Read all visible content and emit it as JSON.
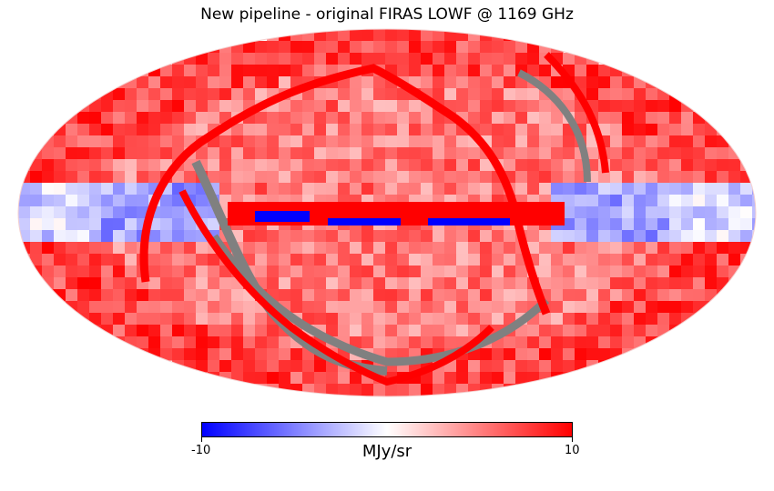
{
  "title": "New pipeline - original FIRAS LOWF @ 1169 GHz",
  "colorbar": {
    "min_label": "-10",
    "max_label": "10",
    "unit": "MJy/sr",
    "min": -10,
    "max": 10,
    "colors": [
      "#0000ff",
      "#ffffff",
      "#ff0000"
    ]
  },
  "map": {
    "projection": "mollweide",
    "colors": {
      "galactic_plane_excess": "#ff0000",
      "galactic_plane_deficit": "#0000ff",
      "masked": "#808080",
      "background": "#ffffff"
    }
  }
}
